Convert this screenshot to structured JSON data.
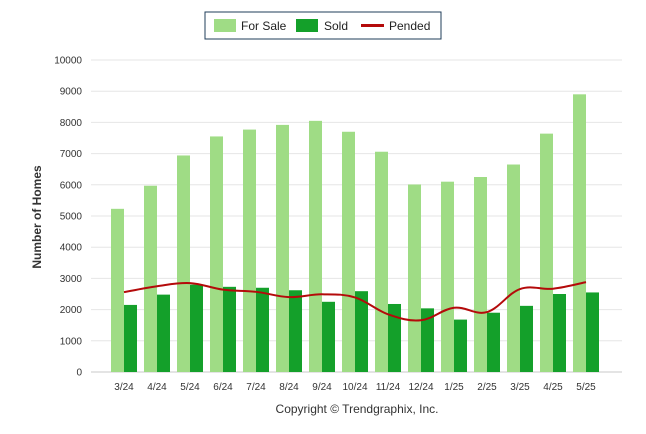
{
  "chart_data": {
    "type": "bar",
    "categories": [
      "3/24",
      "4/24",
      "5/24",
      "6/24",
      "7/24",
      "8/24",
      "9/24",
      "10/24",
      "11/24",
      "12/24",
      "1/25",
      "2/25",
      "3/25",
      "4/25",
      "5/25"
    ],
    "series": [
      {
        "name": "For Sale",
        "type": "bar",
        "color": "#9fdc85",
        "values": [
          5230,
          5970,
          6940,
          7550,
          7770,
          7920,
          8050,
          7700,
          7060,
          6010,
          6100,
          6250,
          6650,
          7640,
          8900
        ]
      },
      {
        "name": "Sold",
        "type": "bar",
        "color": "#14a02a",
        "values": [
          2150,
          2480,
          2800,
          2730,
          2700,
          2620,
          2250,
          2590,
          2180,
          2040,
          1680,
          1900,
          2120,
          2500,
          2550
        ]
      },
      {
        "name": "Pended",
        "type": "line",
        "color": "#b40a0a",
        "values": [
          2560,
          2750,
          2850,
          2640,
          2570,
          2400,
          2490,
          2390,
          1850,
          1660,
          2060,
          1920,
          2660,
          2670,
          2880
        ]
      }
    ],
    "ylim": [
      0,
      10000
    ],
    "yticks": [
      0,
      1000,
      2000,
      3000,
      4000,
      5000,
      6000,
      7000,
      8000,
      9000,
      10000
    ],
    "title": "",
    "xlabel": "",
    "ylabel": "Number of Homes",
    "legend_position": "top-center",
    "grid": true
  },
  "footer": "Copyright © Trendgraphix, Inc."
}
